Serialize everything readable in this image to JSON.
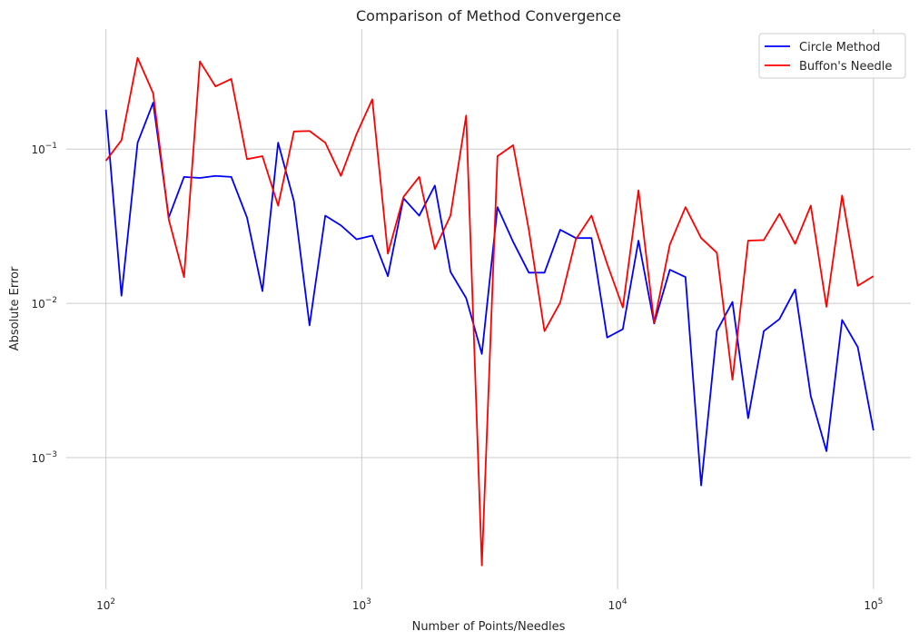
{
  "chart_data": {
    "type": "line",
    "title": "Comparison of Method Convergence",
    "xlabel": "Number of Points/Needles",
    "ylabel": "Absolute Error",
    "xscale": "log",
    "yscale": "log",
    "xlim": [
      70,
      140000
    ],
    "ylim": [
      0.00014,
      0.6
    ],
    "grid": true,
    "legend_position": "top-right",
    "xticks": [
      {
        "value": 100,
        "base": "10",
        "exp": "2"
      },
      {
        "value": 1000,
        "base": "10",
        "exp": "3"
      },
      {
        "value": 10000,
        "base": "10",
        "exp": "4"
      },
      {
        "value": 100000,
        "base": "10",
        "exp": "5"
      }
    ],
    "yticks": [
      {
        "value": 0.001,
        "base": "10",
        "exp": "−3"
      },
      {
        "value": 0.01,
        "base": "10",
        "exp": "−2"
      },
      {
        "value": 0.1,
        "base": "10",
        "exp": "−1"
      }
    ],
    "x": [
      100,
      115,
      133,
      153,
      176,
      202,
      233,
      268,
      309,
      356,
      409,
      471,
      543,
      625,
      720,
      829,
      954,
      1099,
      1265,
      1456,
      1677,
      1931,
      2222,
      2559,
      2947,
      3393,
      3907,
      4498,
      5179,
      5964,
      6866,
      7906,
      9103,
      10481,
      12068,
      13895,
      15999,
      18421,
      21210,
      24421,
      28118,
      32375,
      37276,
      42919,
      49417,
      56898,
      65512,
      75431,
      86851,
      100000
    ],
    "series": [
      {
        "name": "Circle Method",
        "color": "#0000ff",
        "values": [
          0.18,
          0.0112,
          0.11,
          0.2,
          0.036,
          0.066,
          0.065,
          0.067,
          0.066,
          0.036,
          0.012,
          0.11,
          0.046,
          0.0072,
          0.037,
          0.032,
          0.026,
          0.0275,
          0.015,
          0.048,
          0.037,
          0.058,
          0.016,
          0.0108,
          0.0047,
          0.042,
          0.025,
          0.0158,
          0.0158,
          0.03,
          0.0265,
          0.0265,
          0.006,
          0.0068,
          0.0255,
          0.0074,
          0.0165,
          0.0148,
          0.00066,
          0.0066,
          0.0102,
          0.0018,
          0.0066,
          0.0079,
          0.0123,
          0.0025,
          0.0011,
          0.0078,
          0.0052,
          0.0015
        ]
      },
      {
        "name": "Buffon's Needle",
        "color": "#ff0000",
        "values": [
          0.084,
          0.114,
          0.39,
          0.23,
          0.035,
          0.0148,
          0.37,
          0.255,
          0.285,
          0.086,
          0.09,
          0.043,
          0.13,
          0.131,
          0.11,
          0.067,
          0.125,
          0.21,
          0.021,
          0.049,
          0.066,
          0.0225,
          0.037,
          0.165,
          0.0002,
          0.09,
          0.106,
          0.03,
          0.0066,
          0.0101,
          0.026,
          0.037,
          0.018,
          0.0094,
          0.054,
          0.0075,
          0.024,
          0.042,
          0.0265,
          0.0213,
          0.0032,
          0.0255,
          0.0257,
          0.038,
          0.0243,
          0.043,
          0.0095,
          0.05,
          0.013,
          0.015
        ]
      }
    ]
  }
}
